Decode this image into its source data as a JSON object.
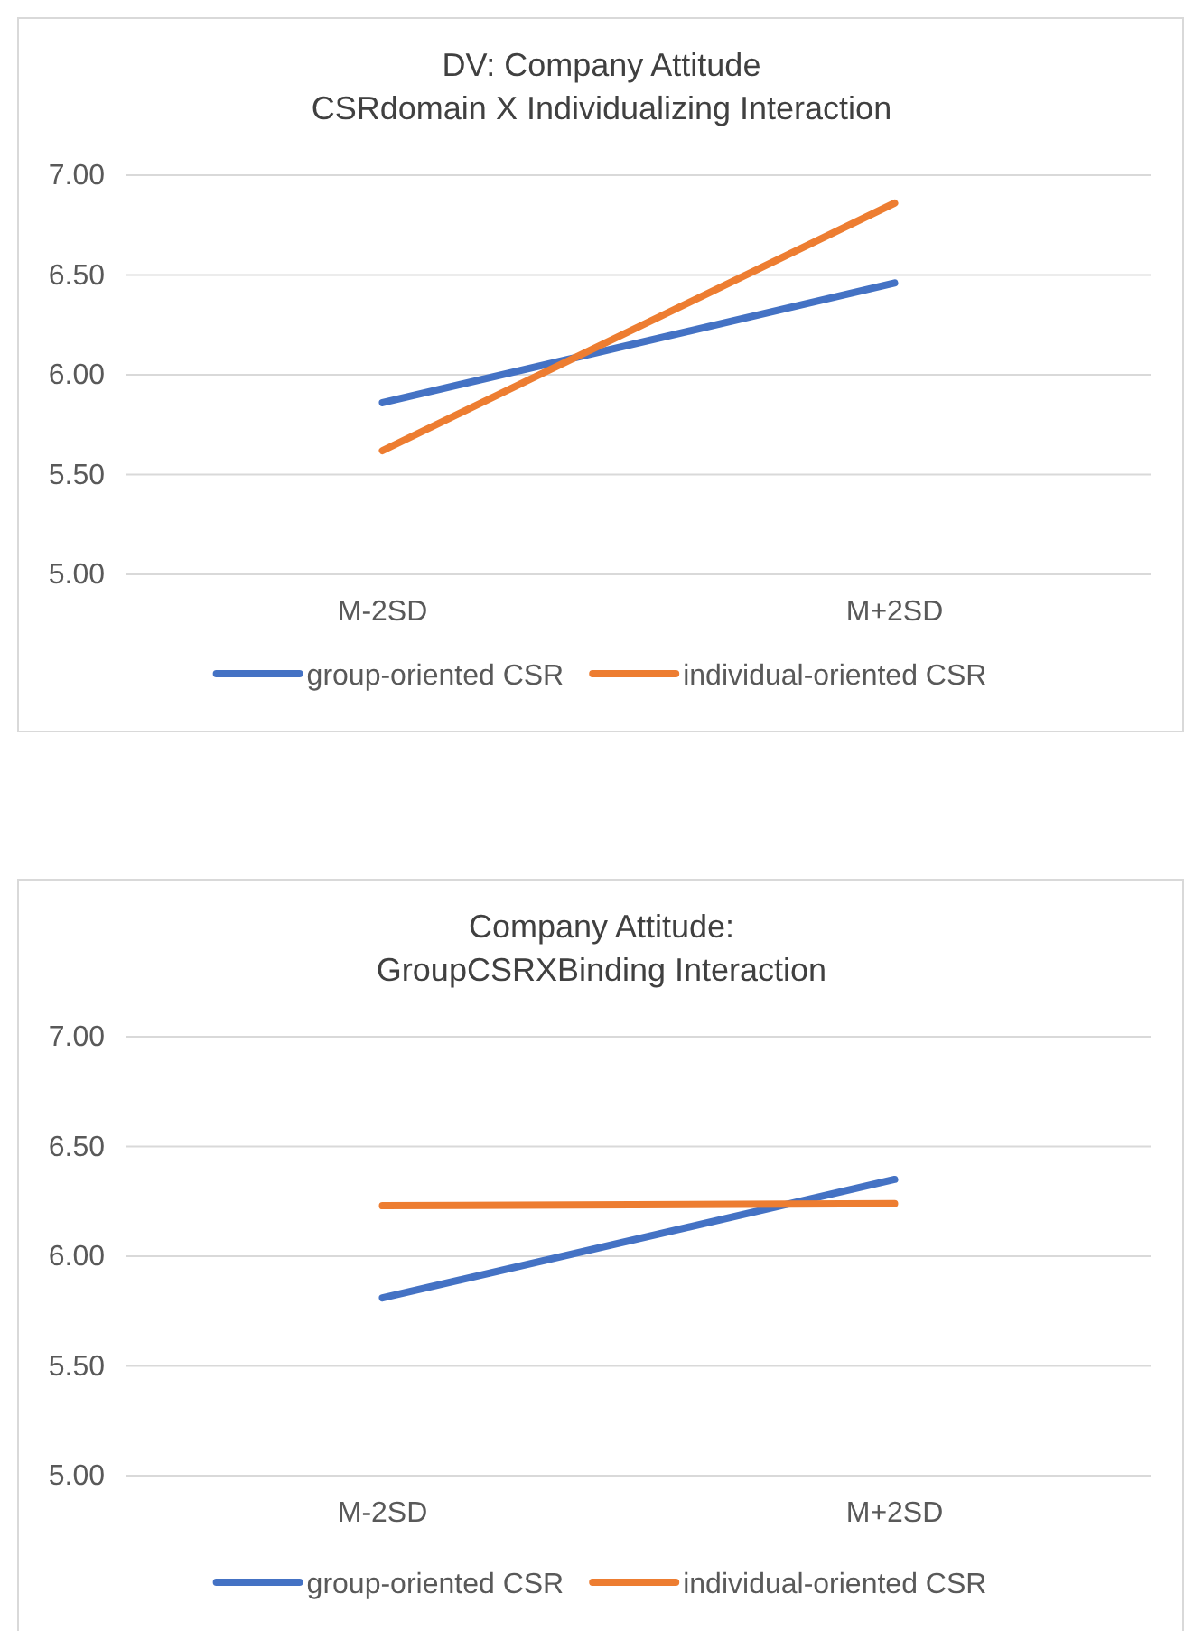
{
  "chart_data": [
    {
      "type": "line",
      "title": "DV: Company Attitude\nCSRdomain X Individualizing Interaction",
      "categories": [
        "M-2SD",
        "M+2SD"
      ],
      "ylim": [
        5,
        7
      ],
      "yticks": [
        {
          "value": 5,
          "label": "5.00"
        },
        {
          "value": 5.5,
          "label": "5.50"
        },
        {
          "value": 6,
          "label": "6.00"
        },
        {
          "value": 6.5,
          "label": "6.50"
        },
        {
          "value": 7,
          "label": "7.00"
        }
      ],
      "grid": "y",
      "legend": "bottom",
      "marker": "none",
      "line_style": "solid",
      "series": [
        {
          "name": "group-oriented CSR",
          "color": "#4472c4",
          "values": [
            5.86,
            6.46
          ]
        },
        {
          "name": "individual-oriented CSR",
          "color": "#ed7d31",
          "values": [
            5.62,
            6.86
          ]
        }
      ]
    },
    {
      "type": "line",
      "title": "Company Attitude:\nGroupCSRXBinding Interaction",
      "categories": [
        "M-2SD",
        "M+2SD"
      ],
      "ylim": [
        5,
        7
      ],
      "yticks": [
        {
          "value": 5,
          "label": "5.00"
        },
        {
          "value": 5.5,
          "label": "5.50"
        },
        {
          "value": 6,
          "label": "6.00"
        },
        {
          "value": 6.5,
          "label": "6.50"
        },
        {
          "value": 7,
          "label": "7.00"
        }
      ],
      "grid": "y",
      "legend": "bottom",
      "marker": "none",
      "line_style": "solid",
      "series": [
        {
          "name": "group-oriented CSR",
          "color": "#4472c4",
          "values": [
            5.81,
            6.35
          ]
        },
        {
          "name": "individual-oriented CSR",
          "color": "#ed7d31",
          "values": [
            6.23,
            6.24
          ]
        }
      ]
    }
  ]
}
